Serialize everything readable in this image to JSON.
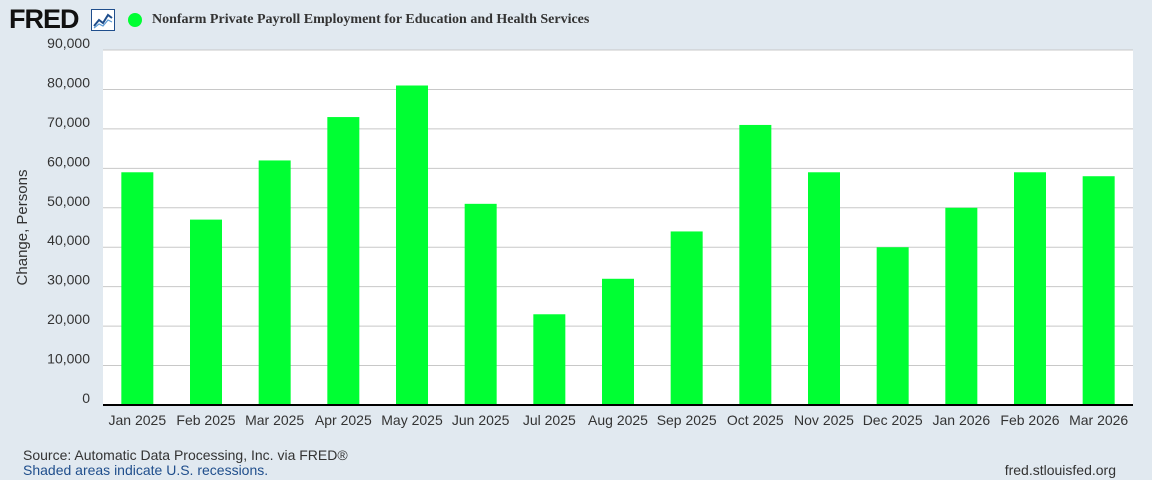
{
  "header": {
    "logo": "FRED",
    "logo_icon": "fred-trend-line-icon",
    "series_title": "Nonfarm Private Payroll Employment for Education and Health Services"
  },
  "colors": {
    "background": "#e1e9f0",
    "plot_background": "#ffffff",
    "bar": "#00ff33",
    "grid": "#c8c8c8",
    "axis": "#000000",
    "link": "#1f4e8c"
  },
  "chart_data": {
    "type": "bar",
    "title": "Nonfarm Private Payroll Employment for Education and Health Services",
    "xlabel": "",
    "ylabel": "Change, Persons",
    "categories": [
      "Jan 2025",
      "Feb 2025",
      "Mar 2025",
      "Apr 2025",
      "May 2025",
      "Jun 2025",
      "Jul 2025",
      "Aug 2025",
      "Sep 2025",
      "Oct 2025",
      "Nov 2025",
      "Dec 2025",
      "Jan 2026",
      "Feb 2026",
      "Mar 2026"
    ],
    "values": [
      59000,
      47000,
      62000,
      73000,
      81000,
      51000,
      23000,
      32000,
      44000,
      71000,
      59000,
      40000,
      50000,
      59000,
      58000
    ],
    "yticks": [
      "0",
      "10,000",
      "20,000",
      "30,000",
      "40,000",
      "50,000",
      "60,000",
      "70,000",
      "80,000",
      "90,000"
    ],
    "ylim": [
      0,
      90000
    ],
    "grid": true,
    "legend": "top-left"
  },
  "footer": {
    "source": "Source: Automatic Data Processing, Inc. via FRED®",
    "recession_note": "Shaded areas indicate U.S. recessions.",
    "url": "fred.stlouisfed.org"
  }
}
